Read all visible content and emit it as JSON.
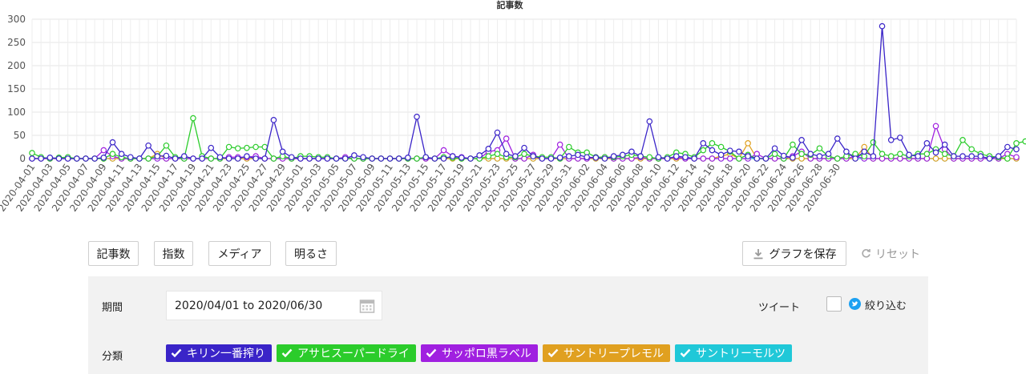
{
  "chart_data": {
    "type": "line",
    "title": "記事数",
    "ylim": [
      0,
      300
    ],
    "yticks": [
      0,
      50,
      100,
      150,
      200,
      250,
      300
    ],
    "grid": true,
    "start_date": "2020-04-01",
    "end_date": "2020-06-30",
    "x_tick_labels": [
      "2020-04-01",
      "2020-04-03",
      "2020-04-05",
      "2020-04-07",
      "2020-04-09",
      "2020-04-11",
      "2020-04-13",
      "2020-04-15",
      "2020-04-17",
      "2020-04-19",
      "2020-04-21",
      "2020-04-23",
      "2020-04-25",
      "2020-04-27",
      "2020-04-29",
      "2020-05-01",
      "2020-05-03",
      "2020-05-05",
      "2020-05-07",
      "2020-05-09",
      "2020-05-11",
      "2020-05-13",
      "2020-05-15",
      "2020-05-17",
      "2020-05-19",
      "2020-05-21",
      "2020-05-23",
      "2020-05-25",
      "2020-05-27",
      "2020-05-29",
      "2020-05-31",
      "2020-06-02",
      "2020-06-04",
      "2020-06-06",
      "2020-06-08",
      "2020-06-10",
      "2020-06-12",
      "2020-06-14",
      "2020-06-16",
      "2020-06-18",
      "2020-06-20",
      "2020-06-22",
      "2020-06-24",
      "2020-06-26",
      "2020-06-28",
      "2020-06-30"
    ],
    "series": [
      {
        "name": "キリン一番搾り",
        "color": "#3a24c8",
        "values": [
          0,
          0,
          2,
          0,
          0,
          0,
          0,
          0,
          2,
          35,
          10,
          3,
          0,
          28,
          5,
          6,
          0,
          5,
          0,
          0,
          23,
          3,
          0,
          0,
          5,
          0,
          0,
          83,
          15,
          3,
          0,
          0,
          0,
          0,
          0,
          0,
          7,
          3,
          0,
          0,
          0,
          0,
          2,
          90,
          3,
          0,
          0,
          5,
          2,
          0,
          7,
          21,
          56,
          10,
          5,
          23,
          5,
          0,
          0,
          2,
          5,
          8,
          3,
          2,
          0,
          5,
          8,
          15,
          5,
          80,
          3,
          0,
          5,
          3,
          0,
          33,
          18,
          8,
          17,
          15,
          5,
          0,
          0,
          22,
          6,
          2,
          40,
          10,
          5,
          10,
          43,
          15,
          0,
          15,
          5,
          285,
          40,
          45,
          8,
          5,
          33,
          13,
          30,
          5,
          5,
          5,
          5,
          0,
          5,
          25,
          20
        ]
      },
      {
        "name": "アサヒスーパードライ",
        "color": "#2bcc2b",
        "values": [
          12,
          3,
          0,
          2,
          3,
          0,
          0,
          0,
          0,
          10,
          3,
          0,
          0,
          0,
          5,
          28,
          3,
          0,
          87,
          5,
          0,
          0,
          25,
          22,
          23,
          25,
          25,
          0,
          5,
          0,
          5,
          5,
          3,
          3,
          0,
          0,
          0,
          0,
          0,
          0,
          0,
          0,
          0,
          0,
          3,
          0,
          3,
          2,
          0,
          0,
          0,
          5,
          10,
          3,
          3,
          10,
          5,
          3,
          3,
          0,
          25,
          13,
          13,
          3,
          3,
          3,
          5,
          8,
          5,
          3,
          0,
          3,
          13,
          10,
          3,
          18,
          33,
          25,
          15,
          0,
          8,
          0,
          0,
          10,
          0,
          30,
          10,
          8,
          22,
          5,
          0,
          5,
          10,
          5,
          35,
          10,
          5,
          10,
          5,
          10,
          10,
          20,
          10,
          5,
          40,
          20,
          10,
          5,
          3,
          0,
          33,
          37
        ]
      },
      {
        "name": "サッポロ黒ラベル",
        "color": "#a020e0",
        "values": [
          0,
          0,
          0,
          0,
          0,
          0,
          0,
          0,
          18,
          5,
          0,
          0,
          0,
          0,
          0,
          0,
          0,
          0,
          0,
          0,
          0,
          0,
          3,
          3,
          3,
          5,
          0,
          0,
          0,
          0,
          0,
          0,
          0,
          0,
          0,
          3,
          0,
          0,
          0,
          0,
          0,
          0,
          0,
          0,
          0,
          0,
          18,
          5,
          3,
          0,
          0,
          15,
          18,
          43,
          0,
          0,
          8,
          0,
          0,
          30,
          0,
          0,
          0,
          3,
          3,
          0,
          0,
          0,
          3,
          0,
          0,
          0,
          3,
          0,
          0,
          0,
          0,
          0,
          0,
          0,
          0,
          10,
          0,
          0,
          0,
          5,
          15,
          0,
          0,
          0,
          0,
          0,
          5,
          0,
          0,
          0,
          0,
          0,
          0,
          0,
          0,
          70,
          20,
          0,
          0,
          0,
          0,
          0,
          0,
          10,
          3
        ]
      },
      {
        "name": "サントリープレモル",
        "color": "#e0a020",
        "values": [
          0,
          0,
          0,
          0,
          0,
          0,
          0,
          0,
          0,
          0,
          0,
          0,
          0,
          0,
          10,
          0,
          0,
          0,
          0,
          0,
          0,
          0,
          0,
          0,
          0,
          0,
          0,
          0,
          0,
          0,
          0,
          0,
          0,
          0,
          0,
          0,
          0,
          0,
          0,
          0,
          0,
          0,
          0,
          0,
          0,
          0,
          0,
          0,
          0,
          0,
          0,
          0,
          0,
          0,
          0,
          0,
          0,
          0,
          0,
          0,
          0,
          0,
          0,
          0,
          0,
          0,
          0,
          0,
          0,
          0,
          0,
          0,
          0,
          0,
          0,
          0,
          0,
          5,
          10,
          0,
          33,
          0,
          0,
          0,
          0,
          0,
          0,
          0,
          0,
          0,
          0,
          0,
          0,
          25,
          0,
          0,
          0,
          0,
          0,
          0,
          0,
          0,
          0,
          0,
          0,
          0,
          0,
          0,
          0,
          0,
          0
        ]
      },
      {
        "name": "サントリーモルツ",
        "color": "#20c8d8",
        "values": [
          0,
          0,
          0,
          0,
          0,
          0,
          0,
          0,
          0,
          0,
          0,
          0,
          0,
          0,
          0,
          0,
          0,
          0,
          0,
          0,
          0,
          0,
          0,
          0,
          0,
          0,
          0,
          0,
          0,
          0,
          0,
          0,
          0,
          0,
          0,
          0,
          0,
          0,
          0,
          0,
          0,
          0,
          0,
          0,
          0,
          0,
          0,
          0,
          0,
          0,
          0,
          0,
          0,
          0,
          0,
          0,
          0,
          0,
          0,
          0,
          0,
          0,
          0,
          0,
          0,
          0,
          0,
          0,
          0,
          0,
          0,
          0,
          0,
          0,
          0,
          0,
          0,
          0,
          0,
          0,
          0,
          0,
          0,
          0,
          0,
          0,
          0,
          0,
          0,
          0,
          0,
          0,
          0,
          0,
          0,
          0,
          0,
          0,
          0,
          0,
          0,
          0,
          0,
          0,
          0,
          0,
          0,
          0,
          0,
          0,
          0
        ]
      }
    ]
  },
  "toolbar": {
    "buttons": [
      "記事数",
      "指数",
      "メディア",
      "明るさ"
    ],
    "save_label": "グラフを保存",
    "reset_label": "リセット"
  },
  "filters": {
    "period_label": "期間",
    "period_value": "2020/04/01 to 2020/06/30",
    "tweet_label": "ツイート",
    "narrow_label": "絞り込む",
    "category_label": "分類",
    "categories": [
      {
        "label": "キリン一番搾り",
        "color": "#3a24c8"
      },
      {
        "label": "アサヒスーパードライ",
        "color": "#2bcc2b"
      },
      {
        "label": "サッポロ黒ラベル",
        "color": "#a020e0"
      },
      {
        "label": "サントリープレモル",
        "color": "#e0a020"
      },
      {
        "label": "サントリーモルツ",
        "color": "#20c8d8"
      }
    ]
  }
}
